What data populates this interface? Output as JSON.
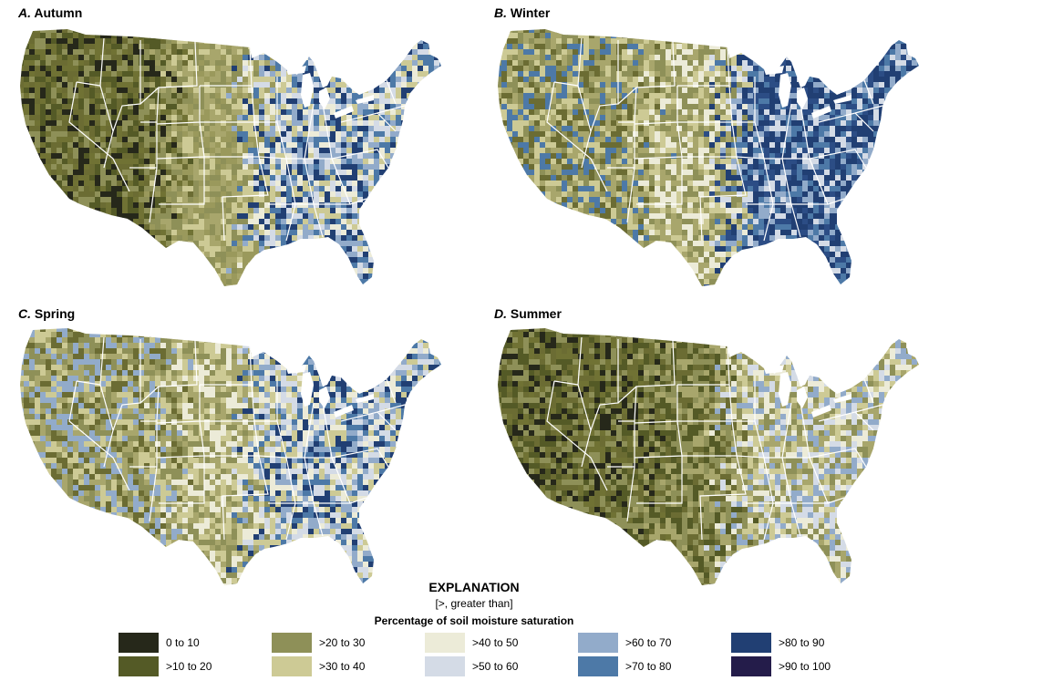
{
  "panels": [
    {
      "letter": "A.",
      "title": "Autumn"
    },
    {
      "letter": "B.",
      "title": "Winter"
    },
    {
      "letter": "C.",
      "title": "Spring"
    },
    {
      "letter": "D.",
      "title": "Summer"
    }
  ],
  "explanation": {
    "title": "EXPLANATION",
    "note": "[>, greater than]",
    "heading": "Percentage of soil moisture saturation"
  },
  "legend": [
    {
      "label": "0 to 10",
      "color": "#26281a"
    },
    {
      "label": ">10 to 20",
      "color": "#545a26"
    },
    {
      "label": ">20 to 30",
      "color": "#8e9058"
    },
    {
      "label": ">30 to 40",
      "color": "#cdca95"
    },
    {
      "label": ">40 to 50",
      "color": "#ecebd8"
    },
    {
      "label": ">50 to 60",
      "color": "#d4dbe6"
    },
    {
      "label": ">60 to 70",
      "color": "#92abca"
    },
    {
      "label": ">70 to 80",
      "color": "#4d79a7"
    },
    {
      "label": ">80 to 90",
      "color": "#213f73"
    },
    {
      "label": ">90 to 100",
      "color": "#241c4a"
    }
  ],
  "season_palettes": {
    "autumn": {
      "west": [
        "#545a26",
        "#707234",
        "#8e9058",
        "#26281a",
        "#6b6c33"
      ],
      "central": [
        "#8e9058",
        "#a8a66c",
        "#cdca95",
        "#9a995c"
      ],
      "east": [
        "#ecebd8",
        "#92abca",
        "#cdca95",
        "#4d79a7",
        "#d4dbe6",
        "#213f73"
      ]
    },
    "winter": {
      "west": [
        "#8e9058",
        "#6b6c33",
        "#a8a66c",
        "#cdca95",
        "#4d79a7"
      ],
      "central": [
        "#8e9058",
        "#cdca95",
        "#ecebd8",
        "#a8a66c"
      ],
      "east": [
        "#213f73",
        "#4d79a7",
        "#92abca",
        "#213f73",
        "#d4dbe6",
        "#2c4d85"
      ]
    },
    "spring": {
      "west": [
        "#8e9058",
        "#a8a66c",
        "#6b6c33",
        "#92abca",
        "#cdca95"
      ],
      "central": [
        "#8e9058",
        "#a8a66c",
        "#cdca95",
        "#ecebd8"
      ],
      "east": [
        "#4d79a7",
        "#d4dbe6",
        "#92abca",
        "#213f73",
        "#ecebd8",
        "#cdca95"
      ]
    },
    "summer": {
      "west": [
        "#545a26",
        "#6b6c33",
        "#8e9058",
        "#26281a",
        "#707234"
      ],
      "central": [
        "#6b6c33",
        "#8e9058",
        "#a8a66c",
        "#545a26"
      ],
      "east": [
        "#cdca95",
        "#a8a66c",
        "#ecebd8",
        "#92abca",
        "#8e9058",
        "#d4dbe6"
      ]
    }
  }
}
